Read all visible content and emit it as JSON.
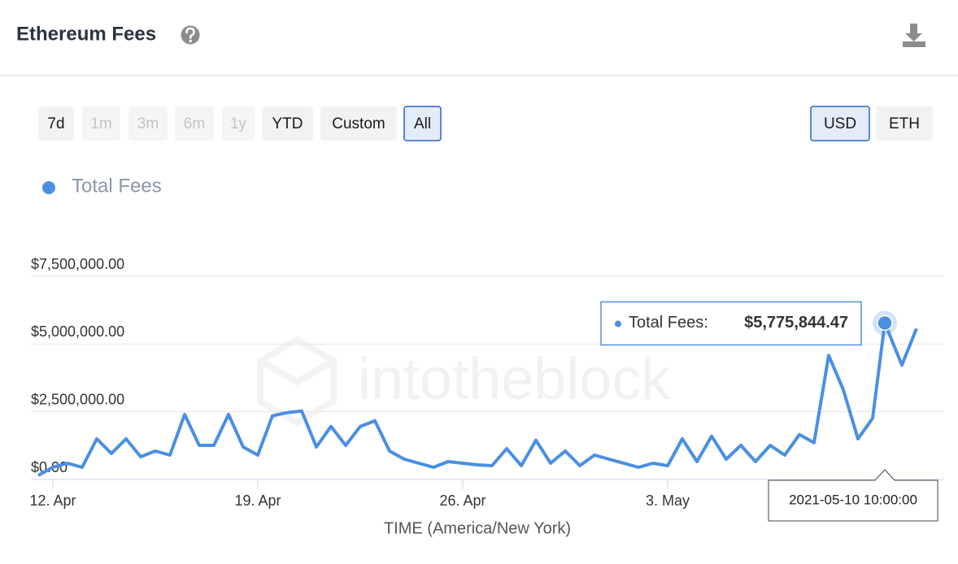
{
  "header": {
    "title": "Ethereum Fees"
  },
  "range_buttons": [
    {
      "label": "7d",
      "state": "enabled"
    },
    {
      "label": "1m",
      "state": "disabled"
    },
    {
      "label": "3m",
      "state": "disabled"
    },
    {
      "label": "6m",
      "state": "disabled"
    },
    {
      "label": "1y",
      "state": "disabled"
    },
    {
      "label": "YTD",
      "state": "enabled"
    },
    {
      "label": "Custom",
      "state": "enabled"
    },
    {
      "label": "All",
      "state": "active"
    }
  ],
  "currency_buttons": [
    {
      "label": "USD",
      "state": "active"
    },
    {
      "label": "ETH",
      "state": "enabled"
    }
  ],
  "chart_data": {
    "type": "line",
    "watermark": "intotheblock",
    "x_label": "TIME (America/New York)",
    "x": [
      "2021-04-11 12:00:00",
      "2021-04-12 00:00:00",
      "2021-04-12 12:00:00",
      "2021-04-13 00:00:00",
      "2021-04-13 12:00:00",
      "2021-04-14 00:00:00",
      "2021-04-14 12:00:00",
      "2021-04-15 00:00:00",
      "2021-04-15 12:00:00",
      "2021-04-16 00:00:00",
      "2021-04-16 12:00:00",
      "2021-04-17 00:00:00",
      "2021-04-17 12:00:00",
      "2021-04-18 00:00:00",
      "2021-04-18 12:00:00",
      "2021-04-19 00:00:00",
      "2021-04-19 12:00:00",
      "2021-04-20 00:00:00",
      "2021-04-20 12:00:00",
      "2021-04-21 00:00:00",
      "2021-04-21 12:00:00",
      "2021-04-22 00:00:00",
      "2021-04-22 12:00:00",
      "2021-04-23 00:00:00",
      "2021-04-23 12:00:00",
      "2021-04-24 00:00:00",
      "2021-04-24 12:00:00",
      "2021-04-25 00:00:00",
      "2021-04-25 12:00:00",
      "2021-04-26 00:00:00",
      "2021-04-26 12:00:00",
      "2021-04-27 00:00:00",
      "2021-04-27 12:00:00",
      "2021-04-28 00:00:00",
      "2021-04-28 12:00:00",
      "2021-04-29 00:00:00",
      "2021-04-29 12:00:00",
      "2021-04-30 00:00:00",
      "2021-04-30 12:00:00",
      "2021-05-01 00:00:00",
      "2021-05-01 12:00:00",
      "2021-05-02 00:00:00",
      "2021-05-02 12:00:00",
      "2021-05-03 00:00:00",
      "2021-05-03 12:00:00",
      "2021-05-04 00:00:00",
      "2021-05-04 12:00:00",
      "2021-05-05 00:00:00",
      "2021-05-05 12:00:00",
      "2021-05-06 00:00:00",
      "2021-05-06 12:00:00",
      "2021-05-07 00:00:00",
      "2021-05-07 12:00:00",
      "2021-05-08 00:00:00",
      "2021-05-08 12:00:00",
      "2021-05-09 00:00:00",
      "2021-05-09 12:00:00",
      "2021-05-10 00:00:00",
      "2021-05-10 10:00:00",
      "2021-05-11 00:00:00",
      "2021-05-11 12:00:00"
    ],
    "series": [
      {
        "name": "Total Fees",
        "color": "#4a8fe2",
        "values": [
          150000,
          450000,
          600000,
          450000,
          1500000,
          960000,
          1500000,
          840000,
          1050000,
          900000,
          2400000,
          1260000,
          1260000,
          2400000,
          1200000,
          900000,
          2350000,
          2470000,
          2530000,
          1200000,
          1960000,
          1260000,
          1960000,
          2170000,
          1050000,
          750000,
          600000,
          450000,
          660000,
          600000,
          540000,
          510000,
          1140000,
          510000,
          1450000,
          600000,
          1050000,
          510000,
          900000,
          750000,
          600000,
          450000,
          600000,
          510000,
          1500000,
          660000,
          1600000,
          750000,
          1260000,
          660000,
          1260000,
          900000,
          1660000,
          1360000,
          4580000,
          3310000,
          1500000,
          2260000,
          5775844.47,
          4220000,
          5570000
        ]
      }
    ],
    "tooltip": {
      "label": "Total Fees:",
      "value_label": "$5,775,844.47"
    },
    "xlim": [
      "2021-04-11 12:00:00",
      "2021-05-11 12:00:00"
    ],
    "xticks": [
      {
        "value": "2021-04-12 00:00:00",
        "label": "12. Apr"
      },
      {
        "value": "2021-04-19 00:00:00",
        "label": "19. Apr"
      },
      {
        "value": "2021-04-26 00:00:00",
        "label": "26. Apr"
      },
      {
        "value": "2021-05-03 00:00:00",
        "label": "3. May"
      }
    ],
    "ylim": [
      0,
      7500000
    ],
    "yticks": [
      {
        "value": 0,
        "label": "$0.00"
      },
      {
        "value": 2500000,
        "label": "$2,500,000.00"
      },
      {
        "value": 5000000,
        "label": "$5,000,000.00"
      },
      {
        "value": 7500000,
        "label": "$7,500,000.00"
      }
    ],
    "grid": true,
    "legend": "top-left"
  }
}
